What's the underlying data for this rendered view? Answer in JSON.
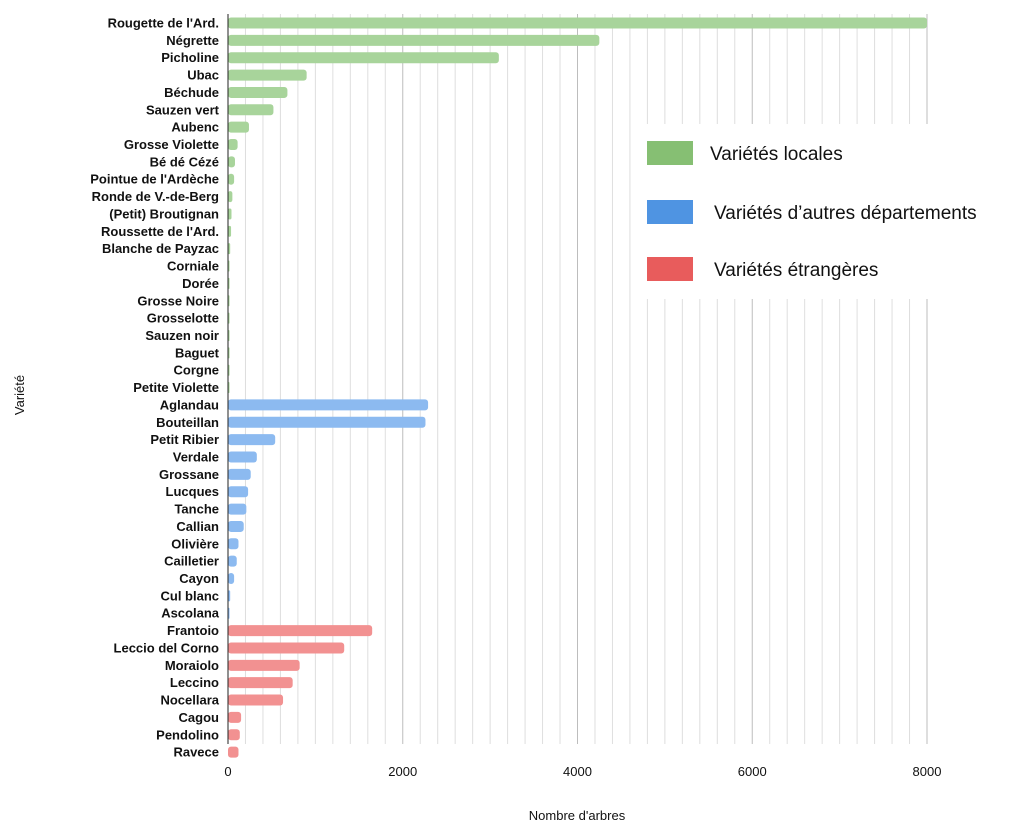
{
  "chart_data": {
    "type": "bar",
    "orientation": "horizontal",
    "xlabel": "Nombre d'arbres",
    "ylabel": "Variété",
    "xlim": [
      0,
      8000
    ],
    "xticks": [
      0,
      2000,
      4000,
      6000,
      8000
    ],
    "xtick_labels": [
      "0",
      "2000",
      "4000",
      "6000",
      "8000"
    ],
    "grid": true,
    "legend_position": "right",
    "legend": [
      {
        "name": "Variétés locales",
        "color": "#86bf73"
      },
      {
        "name": "Variétés d’autres départements",
        "color": "#4f94e2"
      },
      {
        "name": "Variétés étrangères",
        "color": "#e85c5c"
      }
    ],
    "bars": [
      {
        "label": "Rougette de l'Ard.",
        "value": 8000,
        "group": 0
      },
      {
        "label": "Négrette",
        "value": 4250,
        "group": 0
      },
      {
        "label": "Picholine",
        "value": 3100,
        "group": 0
      },
      {
        "label": "Ubac",
        "value": 900,
        "group": 0
      },
      {
        "label": "Béchude",
        "value": 680,
        "group": 0
      },
      {
        "label": "Sauzen vert",
        "value": 520,
        "group": 0
      },
      {
        "label": "Aubenc",
        "value": 240,
        "group": 0
      },
      {
        "label": "Grosse Violette",
        "value": 110,
        "group": 0
      },
      {
        "label": "Bé dé Cézé",
        "value": 80,
        "group": 0
      },
      {
        "label": "Pointue de l'Ardèche",
        "value": 70,
        "group": 0
      },
      {
        "label": "Ronde de V.-de-Berg",
        "value": 50,
        "group": 0
      },
      {
        "label": "(Petit) Broutignan",
        "value": 40,
        "group": 0
      },
      {
        "label": "Roussette de l'Ard.",
        "value": 35,
        "group": 0
      },
      {
        "label": "Blanche de Payzac",
        "value": 25,
        "group": 0
      },
      {
        "label": "Corniale",
        "value": 15,
        "group": 0
      },
      {
        "label": "Dorée",
        "value": 12,
        "group": 0
      },
      {
        "label": "Grosse Noire",
        "value": 10,
        "group": 0
      },
      {
        "label": "Grosselotte",
        "value": 10,
        "group": 0
      },
      {
        "label": "Sauzen noir",
        "value": 8,
        "group": 0
      },
      {
        "label": "Baguet",
        "value": 2,
        "group": 0
      },
      {
        "label": "Corgne",
        "value": 2,
        "group": 0
      },
      {
        "label": "Petite Violette",
        "value": 2,
        "group": 0
      },
      {
        "label": "Aglandau",
        "value": 2290,
        "group": 1
      },
      {
        "label": "Bouteillan",
        "value": 2260,
        "group": 1
      },
      {
        "label": "Petit Ribier",
        "value": 540,
        "group": 1
      },
      {
        "label": "Verdale",
        "value": 330,
        "group": 1
      },
      {
        "label": "Grossane",
        "value": 260,
        "group": 1
      },
      {
        "label": "Lucques",
        "value": 230,
        "group": 1
      },
      {
        "label": "Tanche",
        "value": 210,
        "group": 1
      },
      {
        "label": "Callian",
        "value": 180,
        "group": 1
      },
      {
        "label": "Olivière",
        "value": 120,
        "group": 1
      },
      {
        "label": "Cailletier",
        "value": 100,
        "group": 1
      },
      {
        "label": "Cayon",
        "value": 70,
        "group": 1
      },
      {
        "label": "Cul blanc",
        "value": 25,
        "group": 1
      },
      {
        "label": "Ascolana",
        "value": 10,
        "group": 1
      },
      {
        "label": "Frantoio",
        "value": 1650,
        "group": 2
      },
      {
        "label": "Leccio del Corno",
        "value": 1330,
        "group": 2
      },
      {
        "label": "Moraiolo",
        "value": 820,
        "group": 2
      },
      {
        "label": "Leccino",
        "value": 740,
        "group": 2
      },
      {
        "label": "Nocellara",
        "value": 630,
        "group": 2
      },
      {
        "label": "Cagou",
        "value": 150,
        "group": 2
      },
      {
        "label": "Pendolino",
        "value": 135,
        "group": 2
      },
      {
        "label": "Ravece",
        "value": 120,
        "group": 2
      }
    ],
    "bar_colors": [
      "#a8d49b",
      "#8cbaf0",
      "#f29191"
    ]
  }
}
